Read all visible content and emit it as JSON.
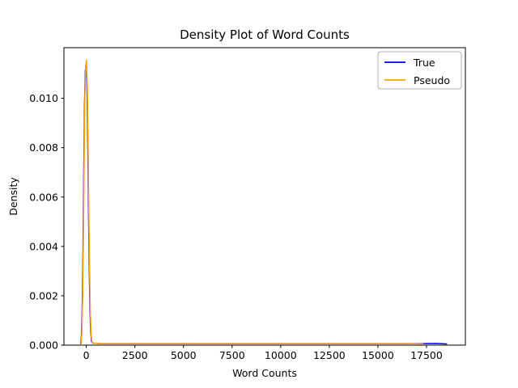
{
  "figure": {
    "title": "Density Plot of Word Counts",
    "xlabel": "Word Counts",
    "ylabel": "Density"
  },
  "legend": {
    "position": "upper right",
    "entries": [
      {
        "label": "True",
        "color": "#0000ff"
      },
      {
        "label": "Pseudo",
        "color": "#ffa500"
      }
    ]
  },
  "chart_data": {
    "type": "line",
    "title": "Density Plot of Word Counts",
    "xlabel": "Word Counts",
    "ylabel": "Density",
    "xlim": [
      -1150,
      19500
    ],
    "ylim": [
      0,
      0.01205
    ],
    "grid": false,
    "legend_position": "upper right",
    "x_ticks": [
      0,
      2500,
      5000,
      7500,
      10000,
      12500,
      15000,
      17500
    ],
    "x_tick_labels": [
      "0",
      "2500",
      "5000",
      "7500",
      "10000",
      "12500",
      "15000",
      "17500"
    ],
    "y_ticks": [
      0.0,
      0.002,
      0.004,
      0.006,
      0.008,
      0.01
    ],
    "y_tick_labels": [
      "0.000",
      "0.002",
      "0.004",
      "0.006",
      "0.008",
      "0.010"
    ],
    "series": [
      {
        "name": "True",
        "color": "#0000ff",
        "points": [
          [
            -290,
            0.0
          ],
          [
            -250,
            0.0004
          ],
          [
            -210,
            0.0015
          ],
          [
            -170,
            0.0038
          ],
          [
            -130,
            0.007
          ],
          [
            -90,
            0.0098
          ],
          [
            -50,
            0.0111
          ],
          [
            -10,
            0.0114
          ],
          [
            30,
            0.0107
          ],
          [
            70,
            0.0086
          ],
          [
            110,
            0.0058
          ],
          [
            150,
            0.0032
          ],
          [
            190,
            0.0014
          ],
          [
            230,
            0.0005
          ],
          [
            270,
            0.00015
          ],
          [
            330,
            8e-05
          ],
          [
            700,
            6e-05
          ],
          [
            2500,
            6e-05
          ],
          [
            5000,
            6e-05
          ],
          [
            7500,
            6e-05
          ],
          [
            10000,
            6e-05
          ],
          [
            12500,
            6e-05
          ],
          [
            15000,
            6e-05
          ],
          [
            17000,
            6e-05
          ],
          [
            18000,
            7e-05
          ],
          [
            18560,
            5e-05
          ]
        ]
      },
      {
        "name": "Pseudo",
        "color": "#ffa500",
        "points": [
          [
            -270,
            0.0
          ],
          [
            -230,
            0.0005
          ],
          [
            -190,
            0.0018
          ],
          [
            -150,
            0.0042
          ],
          [
            -110,
            0.0075
          ],
          [
            -70,
            0.0102
          ],
          [
            -30,
            0.0113
          ],
          [
            10,
            0.01155
          ],
          [
            50,
            0.0106
          ],
          [
            90,
            0.0084
          ],
          [
            130,
            0.0055
          ],
          [
            170,
            0.003
          ],
          [
            210,
            0.0013
          ],
          [
            250,
            0.0004
          ],
          [
            300,
            0.00012
          ],
          [
            360,
            8e-05
          ],
          [
            700,
            6e-05
          ],
          [
            2500,
            6e-05
          ],
          [
            5000,
            6e-05
          ],
          [
            7500,
            6e-05
          ],
          [
            10000,
            6e-05
          ],
          [
            12500,
            6e-05
          ],
          [
            15000,
            6e-05
          ],
          [
            16500,
            6e-05
          ],
          [
            17350,
            5e-05
          ]
        ]
      }
    ]
  }
}
